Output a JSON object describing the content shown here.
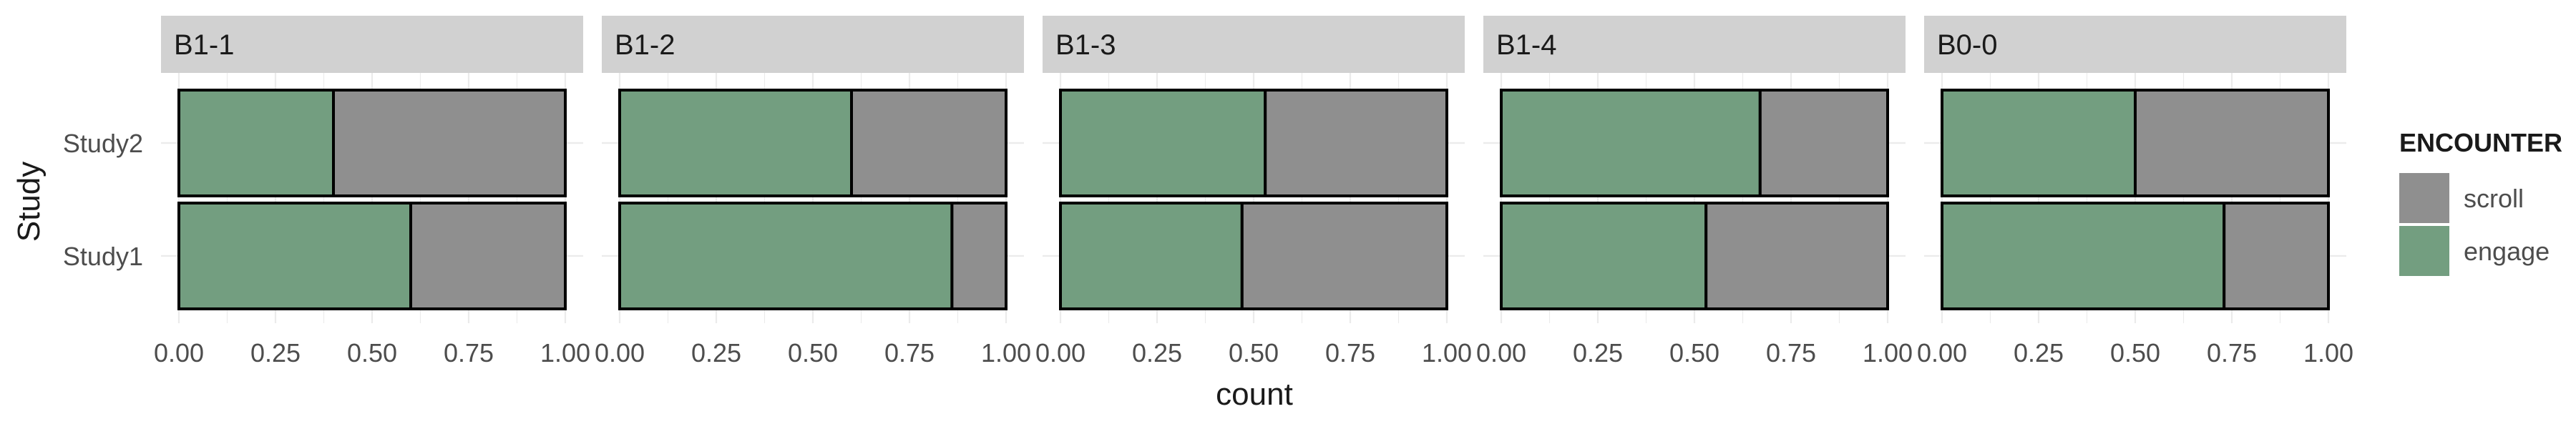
{
  "chart_data": {
    "type": "bar",
    "orientation": "horizontal",
    "stacked": true,
    "xlabel": "count",
    "ylabel": "Study",
    "xlim": [
      0,
      1
    ],
    "x_ticks": [
      "0.00",
      "0.25",
      "0.50",
      "0.75",
      "1.00"
    ],
    "categories": [
      "Study2",
      "Study1"
    ],
    "legend": {
      "title": "ENCOUNTER",
      "position": "right",
      "entries": [
        {
          "name": "scroll",
          "color": "#8f8f8f"
        },
        {
          "name": "engage",
          "color": "#739e80"
        }
      ]
    },
    "grid": true,
    "panels": [
      {
        "label": "B1-1",
        "series": [
          {
            "name": "engage",
            "values": [
              0.4,
              0.6
            ]
          },
          {
            "name": "scroll",
            "values": [
              0.6,
              0.4
            ]
          }
        ]
      },
      {
        "label": "B1-2",
        "series": [
          {
            "name": "engage",
            "values": [
              0.6,
              0.86
            ]
          },
          {
            "name": "scroll",
            "values": [
              0.4,
              0.14
            ]
          }
        ]
      },
      {
        "label": "B1-3",
        "series": [
          {
            "name": "engage",
            "values": [
              0.53,
              0.47
            ]
          },
          {
            "name": "scroll",
            "values": [
              0.47,
              0.53
            ]
          }
        ]
      },
      {
        "label": "B1-4",
        "series": [
          {
            "name": "engage",
            "values": [
              0.67,
              0.53
            ]
          },
          {
            "name": "scroll",
            "values": [
              0.33,
              0.47
            ]
          }
        ]
      },
      {
        "label": "B0-0",
        "series": [
          {
            "name": "engage",
            "values": [
              0.5,
              0.73
            ]
          },
          {
            "name": "scroll",
            "values": [
              0.5,
              0.27
            ]
          }
        ]
      }
    ]
  }
}
